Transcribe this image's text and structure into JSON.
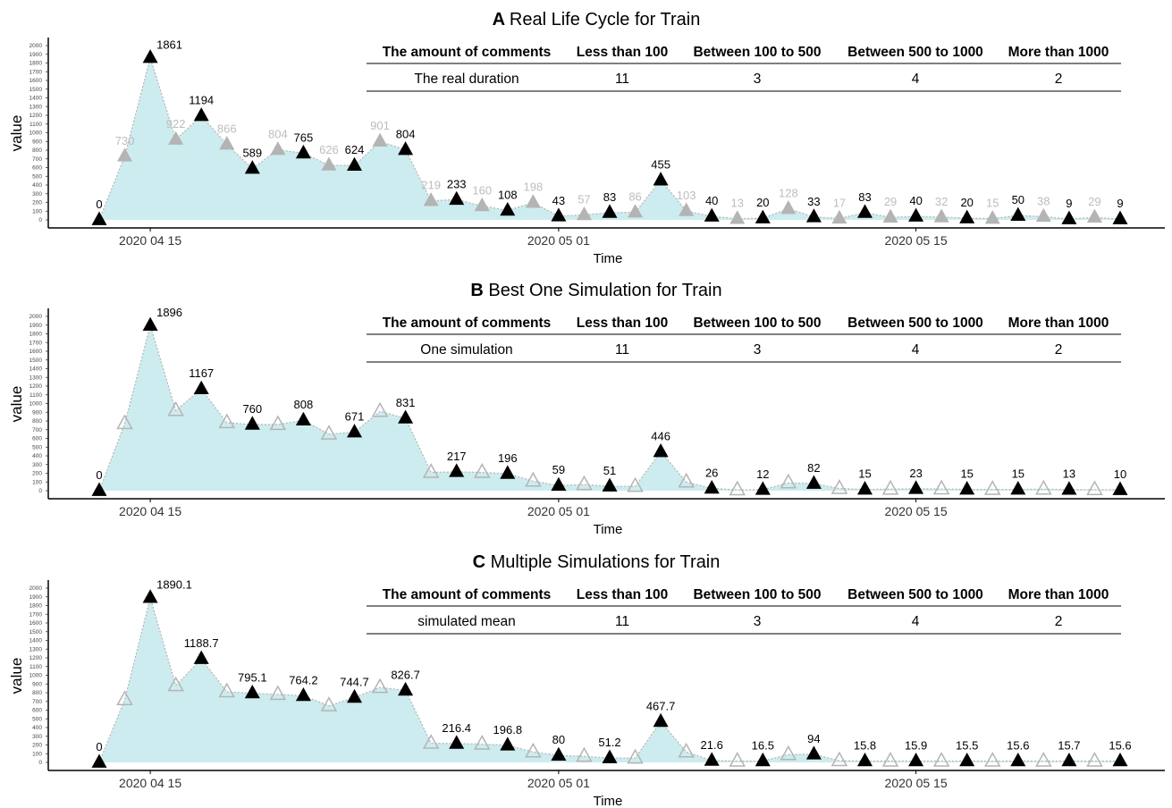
{
  "colors": {
    "area_fill": "#cdecef",
    "line": "#b4b4b4",
    "marker_dark": "#000000",
    "marker_light": "#b4b4b4",
    "label_light": "#bdbdbd"
  },
  "chart_data": [
    {
      "type": "area",
      "title_letter": "A",
      "title": "Real Life Cycle for Train",
      "xlabel": "Time",
      "ylabel": "value",
      "ylim": [
        0,
        2000
      ],
      "yticks": [
        0,
        100,
        200,
        300,
        400,
        500,
        600,
        700,
        800,
        900,
        1000,
        1100,
        1200,
        1300,
        1400,
        1500,
        1600,
        1700,
        1800,
        1900,
        2000
      ],
      "xticks": [
        "2020 04 15",
        "2020 05 01",
        "2020 05 15"
      ],
      "x": [
        "2020 04 13",
        "2020 04 14",
        "2020 04 15",
        "2020 04 16",
        "2020 04 17",
        "2020 04 18",
        "2020 04 19",
        "2020 04 20",
        "2020 04 21",
        "2020 04 22",
        "2020 04 23",
        "2020 04 24",
        "2020 04 25",
        "2020 04 26",
        "2020 04 27",
        "2020 04 28",
        "2020 04 29",
        "2020 04 30",
        "2020 05 01",
        "2020 05 02",
        "2020 05 03",
        "2020 05 04",
        "2020 05 05",
        "2020 05 06",
        "2020 05 07",
        "2020 05 08",
        "2020 05 09",
        "2020 05 10",
        "2020 05 11",
        "2020 05 12",
        "2020 05 13",
        "2020 05 14",
        "2020 05 15",
        "2020 05 16",
        "2020 05 17",
        "2020 05 18",
        "2020 05 19",
        "2020 05 20",
        "2020 05 21",
        "2020 05 22",
        "2020 05 23"
      ],
      "values": [
        0,
        730,
        1861,
        922,
        1194,
        866,
        589,
        804,
        765,
        626,
        624,
        901,
        804,
        219,
        233,
        160,
        108,
        198,
        43,
        57,
        83,
        86,
        455,
        103,
        40,
        13,
        20,
        128,
        33,
        17,
        83,
        29,
        40,
        32,
        20,
        15,
        50,
        38,
        9,
        29,
        9
      ],
      "labels": [
        "0",
        "730",
        "1861",
        "922",
        "1194",
        "866",
        "589",
        "804",
        "765",
        "626",
        "624",
        "901",
        "804",
        "219",
        "233",
        "160",
        "108",
        "198",
        "43",
        "57",
        "83",
        "86",
        "455",
        "103",
        "40",
        "13",
        "20",
        "128",
        "33",
        "17",
        "83",
        "29",
        "40",
        "32",
        "20",
        "15",
        "50",
        "38",
        "9",
        "29",
        "9"
      ],
      "marker_style": "filled",
      "table": {
        "headers": [
          "The amount of comments",
          "Less than 100",
          "Between 100 to 500",
          "Between 500 to 1000",
          "More than 1000"
        ],
        "row": [
          "The real duration",
          "11",
          "3",
          "4",
          "2"
        ]
      }
    },
    {
      "type": "area",
      "title_letter": "B",
      "title": "Best One Simulation for Train",
      "xlabel": "Time",
      "ylabel": "value",
      "ylim": [
        0,
        2000
      ],
      "yticks": [
        0,
        100,
        200,
        300,
        400,
        500,
        600,
        700,
        800,
        900,
        1000,
        1100,
        1200,
        1300,
        1400,
        1500,
        1600,
        1700,
        1800,
        1900,
        2000
      ],
      "xticks": [
        "2020 04 15",
        "2020 05 01",
        "2020 05 15"
      ],
      "x": [
        "2020 04 13",
        "2020 04 14",
        "2020 04 15",
        "2020 04 16",
        "2020 04 17",
        "2020 04 18",
        "2020 04 19",
        "2020 04 20",
        "2020 04 21",
        "2020 04 22",
        "2020 04 23",
        "2020 04 24",
        "2020 04 25",
        "2020 04 26",
        "2020 04 27",
        "2020 04 28",
        "2020 04 29",
        "2020 04 30",
        "2020 05 01",
        "2020 05 02",
        "2020 05 03",
        "2020 05 04",
        "2020 05 05",
        "2020 05 06",
        "2020 05 07",
        "2020 05 08",
        "2020 05 09",
        "2020 05 10",
        "2020 05 11",
        "2020 05 12",
        "2020 05 13",
        "2020 05 14",
        "2020 05 15",
        "2020 05 16",
        "2020 05 17",
        "2020 05 18",
        "2020 05 19",
        "2020 05 20",
        "2020 05 21",
        "2020 05 22",
        "2020 05 23"
      ],
      "values": [
        0,
        770,
        1896,
        920,
        1167,
        780,
        760,
        760,
        808,
        650,
        671,
        910,
        831,
        210,
        217,
        210,
        196,
        110,
        59,
        70,
        51,
        50,
        446,
        100,
        26,
        10,
        12,
        90,
        82,
        25,
        15,
        18,
        23,
        20,
        15,
        15,
        15,
        18,
        13,
        12,
        10
      ],
      "labels": [
        "0",
        "",
        "1896",
        "",
        "1167",
        "",
        "760",
        "",
        "808",
        "",
        "671",
        "",
        "831",
        "",
        "217",
        "",
        "196",
        "",
        "59",
        "",
        "51",
        "",
        "446",
        "",
        "26",
        "",
        "12",
        "",
        "82",
        "",
        "15",
        "",
        "23",
        "",
        "15",
        "",
        "15",
        "",
        "13",
        "",
        "10"
      ],
      "marker_style": "hollow",
      "table": {
        "headers": [
          "The amount of comments",
          "Less than 100",
          "Between 100 to 500",
          "Between 500 to 1000",
          "More than 1000"
        ],
        "row": [
          "One simulation",
          "11",
          "3",
          "4",
          "2"
        ]
      }
    },
    {
      "type": "area",
      "title_letter": "C",
      "title": "Multiple Simulations for Train",
      "xlabel": "Time",
      "ylabel": "value",
      "ylim": [
        0,
        2000
      ],
      "yticks": [
        0,
        100,
        200,
        300,
        400,
        500,
        600,
        700,
        800,
        900,
        1000,
        1100,
        1200,
        1300,
        1400,
        1500,
        1600,
        1700,
        1800,
        1900,
        2000
      ],
      "xticks": [
        "2020 04 15",
        "2020 05 01",
        "2020 05 15"
      ],
      "x": [
        "2020 04 13",
        "2020 04 14",
        "2020 04 15",
        "2020 04 16",
        "2020 04 17",
        "2020 04 18",
        "2020 04 19",
        "2020 04 20",
        "2020 04 21",
        "2020 04 22",
        "2020 04 23",
        "2020 04 24",
        "2020 04 25",
        "2020 04 26",
        "2020 04 27",
        "2020 04 28",
        "2020 04 29",
        "2020 04 30",
        "2020 05 01",
        "2020 05 02",
        "2020 05 03",
        "2020 05 04",
        "2020 05 05",
        "2020 05 06",
        "2020 05 07",
        "2020 05 08",
        "2020 05 09",
        "2020 05 10",
        "2020 05 11",
        "2020 05 12",
        "2020 05 13",
        "2020 05 14",
        "2020 05 15",
        "2020 05 16",
        "2020 05 17",
        "2020 05 18",
        "2020 05 19",
        "2020 05 20",
        "2020 05 21",
        "2020 05 22",
        "2020 05 23"
      ],
      "values": [
        0,
        720,
        1890.1,
        880,
        1188.7,
        810,
        795.1,
        780,
        764.2,
        650,
        744.7,
        860,
        826.7,
        220,
        216.4,
        210,
        196.8,
        120,
        80,
        70,
        51.2,
        50,
        467.7,
        120,
        21.6,
        15,
        16.5,
        90,
        94,
        20,
        15.8,
        15,
        15.9,
        15,
        15.5,
        15,
        15.6,
        15,
        15.7,
        15,
        15.6
      ],
      "labels": [
        "0",
        "",
        "1890.1",
        "",
        "1188.7",
        "",
        "795.1",
        "",
        "764.2",
        "",
        "744.7",
        "",
        "826.7",
        "",
        "216.4",
        "",
        "196.8",
        "",
        "80",
        "",
        "51.2",
        "",
        "467.7",
        "",
        "21.6",
        "",
        "16.5",
        "",
        "94",
        "",
        "15.8",
        "",
        "15.9",
        "",
        "15.5",
        "",
        "15.6",
        "",
        "15.7",
        "",
        "15.6"
      ],
      "marker_style": "hollow",
      "table": {
        "headers": [
          "The amount of comments",
          "Less than 100",
          "Between 100 to 500",
          "Between 500 to 1000",
          "More than 1000"
        ],
        "row": [
          "simulated mean",
          "11",
          "3",
          "4",
          "2"
        ]
      }
    }
  ]
}
